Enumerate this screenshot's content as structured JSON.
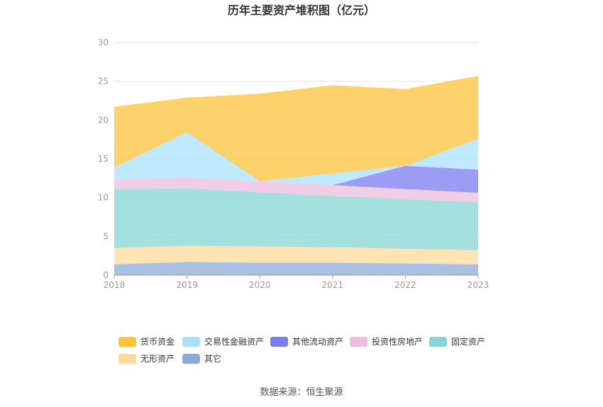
{
  "chart_data": {
    "type": "area",
    "stacked": true,
    "title": "历年主要资产堆积图（亿元）",
    "x": [
      "2018",
      "2019",
      "2020",
      "2021",
      "2022",
      "2023"
    ],
    "ylim": [
      0,
      30
    ],
    "yticks": [
      0,
      5,
      10,
      15,
      20,
      25,
      30
    ],
    "grid": true,
    "legend": "bottom",
    "series": [
      {
        "name": "其它",
        "color": "#8eaadb",
        "values": [
          1.4,
          1.7,
          1.6,
          1.6,
          1.5,
          1.4
        ]
      },
      {
        "name": "无形资产",
        "color": "#ffd99a",
        "values": [
          2.1,
          2.1,
          2.1,
          2.0,
          1.9,
          1.8
        ]
      },
      {
        "name": "固定资产",
        "color": "#86d5d6",
        "values": [
          7.6,
          7.4,
          7.0,
          6.6,
          6.4,
          6.2
        ]
      },
      {
        "name": "投资性房地产",
        "color": "#ecbede",
        "values": [
          1.2,
          1.4,
          1.4,
          1.4,
          1.3,
          1.2
        ]
      },
      {
        "name": "其他流动资产",
        "color": "#7a7cf2",
        "values": [
          0.0,
          0.0,
          0.0,
          0.0,
          3.0,
          3.0
        ]
      },
      {
        "name": "交易性金融资产",
        "color": "#a9e1fb",
        "values": [
          1.6,
          5.8,
          0.0,
          1.5,
          0.0,
          4.0
        ]
      },
      {
        "name": "货币资金",
        "color": "#fdc33a",
        "values": [
          7.8,
          4.5,
          11.3,
          11.4,
          9.9,
          8.1
        ]
      }
    ],
    "legend_order": [
      "货币资金",
      "交易性金融资产",
      "其他流动资产",
      "投资性房地产",
      "固定资产",
      "无形资产",
      "其它"
    ]
  },
  "source": "数据来源：恒生聚源"
}
